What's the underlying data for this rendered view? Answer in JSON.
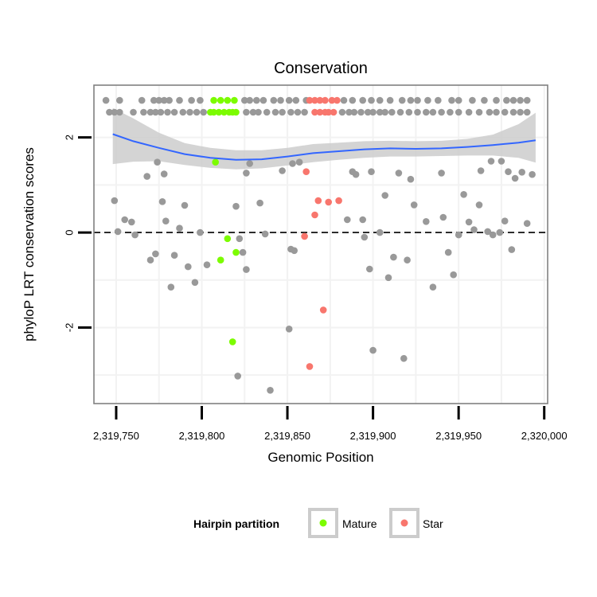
{
  "chart_data": {
    "type": "scatter",
    "title": "Conservation",
    "xlabel": "Genomic Position",
    "ylabel": "phyloP LRT conservation scores",
    "xlim": [
      2319737,
      2320002
    ],
    "ylim": [
      -3.6,
      3.1
    ],
    "x_ticks": [
      {
        "value": 2319750,
        "label": "2,319,750"
      },
      {
        "value": 2319800,
        "label": "2,319,800"
      },
      {
        "value": 2319850,
        "label": "2,319,850"
      },
      {
        "value": 2319900,
        "label": "2,319,900"
      },
      {
        "value": 2319950,
        "label": "2,319,950"
      },
      {
        "value": 2320000,
        "label": "2,320,000"
      }
    ],
    "y_ticks": [
      {
        "value": -2,
        "label": "-2"
      },
      {
        "value": 0,
        "label": "0"
      },
      {
        "value": 2,
        "label": "2"
      }
    ],
    "reference_line": {
      "y": 0,
      "style": "dashed"
    },
    "colors": {
      "other": "#999999",
      "mature": "#7CFC00",
      "star": "#F8766D",
      "smooth": "#3366FF",
      "band": "#CCCCCC",
      "panel_border": "#808080",
      "grid": "#F2F2F2",
      "zero_line": "#000000"
    },
    "legend": {
      "title": "Hairpin partition",
      "position": "bottom",
      "items": [
        {
          "label": "Mature",
          "color": "#7CFC00"
        },
        {
          "label": "Star",
          "color": "#F8766D"
        }
      ]
    },
    "smooth": {
      "x": [
        2319748,
        2319760,
        2319775,
        2319790,
        2319805,
        2319820,
        2319835,
        2319850,
        2319865,
        2319880,
        2319895,
        2319910,
        2319925,
        2319940,
        2319955,
        2319970,
        2319985,
        2319995
      ],
      "y": [
        2.07,
        1.92,
        1.78,
        1.65,
        1.57,
        1.53,
        1.54,
        1.6,
        1.67,
        1.71,
        1.75,
        1.77,
        1.76,
        1.77,
        1.8,
        1.84,
        1.89,
        1.94
      ],
      "lower": [
        1.44,
        1.49,
        1.5,
        1.42,
        1.36,
        1.33,
        1.35,
        1.41,
        1.48,
        1.53,
        1.57,
        1.6,
        1.6,
        1.61,
        1.62,
        1.62,
        1.57,
        1.47
      ],
      "upper": [
        2.62,
        2.4,
        2.1,
        1.88,
        1.78,
        1.73,
        1.73,
        1.78,
        1.86,
        1.89,
        1.92,
        1.93,
        1.92,
        1.93,
        1.97,
        2.06,
        2.28,
        2.52
      ]
    },
    "series": [
      {
        "name": "Other",
        "color": "#999999",
        "points": [
          [
            2319744,
            2.78
          ],
          [
            2319752,
            2.78
          ],
          [
            2319765,
            2.78
          ],
          [
            2319772,
            2.78
          ],
          [
            2319775,
            2.78
          ],
          [
            2319778,
            2.78
          ],
          [
            2319781,
            2.78
          ],
          [
            2319787,
            2.78
          ],
          [
            2319794,
            2.78
          ],
          [
            2319799,
            2.78
          ],
          [
            2319825,
            2.78
          ],
          [
            2319828,
            2.78
          ],
          [
            2319832,
            2.78
          ],
          [
            2319836,
            2.78
          ],
          [
            2319842,
            2.78
          ],
          [
            2319846,
            2.78
          ],
          [
            2319851,
            2.78
          ],
          [
            2319855,
            2.78
          ],
          [
            2319861,
            2.78
          ],
          [
            2319883,
            2.78
          ],
          [
            2319888,
            2.78
          ],
          [
            2319894,
            2.78
          ],
          [
            2319899,
            2.78
          ],
          [
            2319904,
            2.78
          ],
          [
            2319910,
            2.78
          ],
          [
            2319917,
            2.78
          ],
          [
            2319922,
            2.78
          ],
          [
            2319926,
            2.78
          ],
          [
            2319932,
            2.78
          ],
          [
            2319938,
            2.78
          ],
          [
            2319946,
            2.78
          ],
          [
            2319950,
            2.78
          ],
          [
            2319958,
            2.78
          ],
          [
            2319965,
            2.78
          ],
          [
            2319972,
            2.78
          ],
          [
            2319978,
            2.78
          ],
          [
            2319982,
            2.78
          ],
          [
            2319986,
            2.78
          ],
          [
            2319990,
            2.78
          ],
          [
            2319746,
            2.53
          ],
          [
            2319749,
            2.53
          ],
          [
            2319752,
            2.53
          ],
          [
            2319760,
            2.53
          ],
          [
            2319766,
            2.53
          ],
          [
            2319770,
            2.53
          ],
          [
            2319773,
            2.53
          ],
          [
            2319776,
            2.53
          ],
          [
            2319780,
            2.53
          ],
          [
            2319784,
            2.53
          ],
          [
            2319789,
            2.53
          ],
          [
            2319793,
            2.53
          ],
          [
            2319797,
            2.53
          ],
          [
            2319801,
            2.53
          ],
          [
            2319826,
            2.53
          ],
          [
            2319830,
            2.53
          ],
          [
            2319833,
            2.53
          ],
          [
            2319838,
            2.53
          ],
          [
            2319843,
            2.53
          ],
          [
            2319847,
            2.53
          ],
          [
            2319852,
            2.53
          ],
          [
            2319856,
            2.53
          ],
          [
            2319860,
            2.53
          ],
          [
            2319882,
            2.53
          ],
          [
            2319886,
            2.53
          ],
          [
            2319889,
            2.53
          ],
          [
            2319893,
            2.53
          ],
          [
            2319897,
            2.53
          ],
          [
            2319900,
            2.53
          ],
          [
            2319904,
            2.53
          ],
          [
            2319907,
            2.53
          ],
          [
            2319911,
            2.53
          ],
          [
            2319916,
            2.53
          ],
          [
            2319921,
            2.53
          ],
          [
            2319926,
            2.53
          ],
          [
            2319931,
            2.53
          ],
          [
            2319935,
            2.53
          ],
          [
            2319940,
            2.53
          ],
          [
            2319945,
            2.53
          ],
          [
            2319950,
            2.53
          ],
          [
            2319956,
            2.53
          ],
          [
            2319962,
            2.53
          ],
          [
            2319968,
            2.53
          ],
          [
            2319972,
            2.53
          ],
          [
            2319977,
            2.53
          ],
          [
            2319982,
            2.53
          ],
          [
            2319986,
            2.53
          ],
          [
            2319990,
            2.53
          ],
          [
            2319749,
            0.67
          ],
          [
            2319751,
            0.02
          ],
          [
            2319755,
            0.27
          ],
          [
            2319759,
            0.22
          ],
          [
            2319761,
            -0.05
          ],
          [
            2319768,
            1.18
          ],
          [
            2319770,
            -0.58
          ],
          [
            2319773,
            -0.45
          ],
          [
            2319774,
            1.48
          ],
          [
            2319777,
            0.65
          ],
          [
            2319778,
            1.23
          ],
          [
            2319779,
            0.24
          ],
          [
            2319782,
            -1.15
          ],
          [
            2319784,
            -0.48
          ],
          [
            2319787,
            0.09
          ],
          [
            2319790,
            0.57
          ],
          [
            2319792,
            -0.72
          ],
          [
            2319796,
            -1.05
          ],
          [
            2319799,
            0.0
          ],
          [
            2319803,
            -0.68
          ],
          [
            2319820,
            0.55
          ],
          [
            2319822,
            -0.13
          ],
          [
            2319824,
            -0.42
          ],
          [
            2319826,
            1.25
          ],
          [
            2319826,
            -0.78
          ],
          [
            2319828,
            1.45
          ],
          [
            2319821,
            -3.02
          ],
          [
            2319834,
            0.62
          ],
          [
            2319837,
            -0.03
          ],
          [
            2319840,
            -3.32
          ],
          [
            2319847,
            1.3
          ],
          [
            2319851,
            -2.03
          ],
          [
            2319852,
            -0.35
          ],
          [
            2319853,
            1.45
          ],
          [
            2319854,
            -0.38
          ],
          [
            2319857,
            1.48
          ],
          [
            2319885,
            0.27
          ],
          [
            2319888,
            1.28
          ],
          [
            2319890,
            1.22
          ],
          [
            2319894,
            0.27
          ],
          [
            2319895,
            -0.1
          ],
          [
            2319898,
            -0.77
          ],
          [
            2319899,
            1.28
          ],
          [
            2319900,
            -2.48
          ],
          [
            2319904,
            0.0
          ],
          [
            2319907,
            0.78
          ],
          [
            2319909,
            -0.95
          ],
          [
            2319912,
            -0.52
          ],
          [
            2319915,
            1.25
          ],
          [
            2319918,
            -2.65
          ],
          [
            2319920,
            -0.58
          ],
          [
            2319922,
            1.12
          ],
          [
            2319924,
            0.58
          ],
          [
            2319931,
            0.23
          ],
          [
            2319935,
            -1.15
          ],
          [
            2319940,
            1.25
          ],
          [
            2319941,
            0.32
          ],
          [
            2319944,
            -0.42
          ],
          [
            2319947,
            -0.89
          ],
          [
            2319950,
            -0.05
          ],
          [
            2319953,
            0.8
          ],
          [
            2319956,
            0.22
          ],
          [
            2319959,
            0.06
          ],
          [
            2319962,
            0.58
          ],
          [
            2319963,
            1.3
          ],
          [
            2319967,
            0.02
          ],
          [
            2319969,
            1.5
          ],
          [
            2319970,
            -0.05
          ],
          [
            2319974,
            0.0
          ],
          [
            2319975,
            1.5
          ],
          [
            2319977,
            0.24
          ],
          [
            2319979,
            1.28
          ],
          [
            2319981,
            -0.36
          ],
          [
            2319983,
            1.14
          ],
          [
            2319987,
            1.27
          ],
          [
            2319990,
            0.19
          ],
          [
            2319993,
            1.22
          ]
        ]
      },
      {
        "name": "Mature",
        "color": "#7CFC00",
        "points": [
          [
            2319807,
            2.78
          ],
          [
            2319811,
            2.78
          ],
          [
            2319815,
            2.78
          ],
          [
            2319819,
            2.78
          ],
          [
            2319805,
            2.53
          ],
          [
            2319807,
            2.53
          ],
          [
            2319810,
            2.53
          ],
          [
            2319813,
            2.53
          ],
          [
            2319816,
            2.53
          ],
          [
            2319818,
            2.53
          ],
          [
            2319820,
            2.53
          ],
          [
            2319808,
            1.48
          ],
          [
            2319815,
            -0.13
          ],
          [
            2319811,
            -0.58
          ],
          [
            2319820,
            -0.42
          ],
          [
            2319818,
            -2.3
          ]
        ]
      },
      {
        "name": "Star",
        "color": "#F8766D",
        "points": [
          [
            2319863,
            2.78
          ],
          [
            2319866,
            2.78
          ],
          [
            2319869,
            2.78
          ],
          [
            2319872,
            2.78
          ],
          [
            2319876,
            2.78
          ],
          [
            2319879,
            2.78
          ],
          [
            2319866,
            2.53
          ],
          [
            2319869,
            2.53
          ],
          [
            2319872,
            2.53
          ],
          [
            2319874,
            2.53
          ],
          [
            2319877,
            2.53
          ],
          [
            2319861,
            1.28
          ],
          [
            2319866,
            0.37
          ],
          [
            2319868,
            0.67
          ],
          [
            2319874,
            0.64
          ],
          [
            2319880,
            0.67
          ],
          [
            2319860,
            -0.08
          ],
          [
            2319871,
            -1.63
          ],
          [
            2319863,
            -2.82
          ]
        ]
      }
    ]
  }
}
